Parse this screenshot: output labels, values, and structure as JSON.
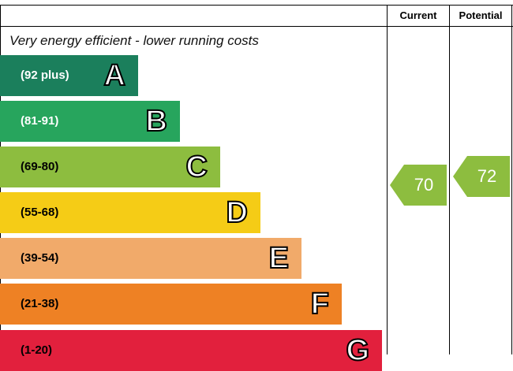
{
  "columns": {
    "current": "Current",
    "potential": "Potential"
  },
  "top_text": "Very energy efficient - lower running costs",
  "chart_data": {
    "type": "bar",
    "bands": [
      {
        "letter": "A",
        "range": "(92 plus)",
        "color": "#1b7f5c"
      },
      {
        "letter": "B",
        "range": "(81-91)",
        "color": "#27a55d"
      },
      {
        "letter": "C",
        "range": "(69-80)",
        "color": "#8dbd3f"
      },
      {
        "letter": "D",
        "range": "(55-68)",
        "color": "#f5cc16"
      },
      {
        "letter": "E",
        "range": "(39-54)",
        "color": "#f1aa6a"
      },
      {
        "letter": "F",
        "range": "(21-38)",
        "color": "#ee8124"
      },
      {
        "letter": "G",
        "range": "(1-20)",
        "color": "#e2203d"
      }
    ],
    "current": {
      "value": "70",
      "band": "C",
      "color": "#8dbd3f"
    },
    "potential": {
      "value": "72",
      "band": "C",
      "color": "#8dbd3f"
    }
  }
}
